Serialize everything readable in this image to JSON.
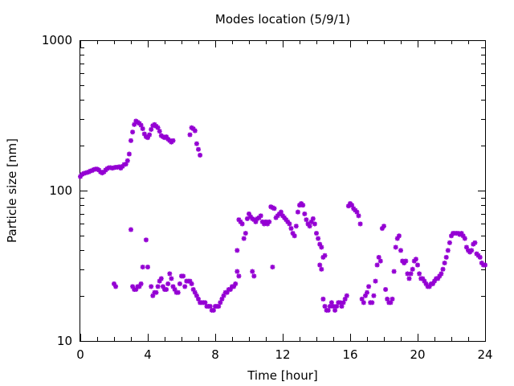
{
  "chart_data": {
    "type": "scatter",
    "title": "Modes location (5/9/1)",
    "xlabel": "Time [hour]",
    "ylabel": "Particle size [nm]",
    "xlim": [
      0,
      24
    ],
    "ylim": [
      10,
      1000
    ],
    "yscale": "log",
    "grid": false,
    "legend": "none",
    "marker_color": "#9400d3",
    "xticks": [
      "0",
      "4",
      "8",
      "12",
      "16",
      "20",
      "24"
    ],
    "yticks": [
      "10",
      "100",
      "1000"
    ],
    "series": [
      {
        "points": [
          [
            0.0,
            124
          ],
          [
            0.1,
            128
          ],
          [
            0.2,
            130
          ],
          [
            0.3,
            131
          ],
          [
            0.4,
            132
          ],
          [
            0.5,
            133
          ],
          [
            0.6,
            135
          ],
          [
            0.7,
            136
          ],
          [
            0.8,
            138
          ],
          [
            0.9,
            139
          ],
          [
            1.0,
            139
          ],
          [
            1.1,
            137
          ],
          [
            1.2,
            133
          ],
          [
            1.3,
            131
          ],
          [
            1.4,
            133
          ],
          [
            1.5,
            137
          ],
          [
            1.6,
            140
          ],
          [
            1.7,
            142
          ],
          [
            1.8,
            142
          ],
          [
            1.9,
            141
          ],
          [
            2.0,
            142
          ],
          [
            2.1,
            143
          ],
          [
            2.2,
            143
          ],
          [
            2.3,
            144
          ],
          [
            2.4,
            141
          ],
          [
            2.5,
            145
          ],
          [
            2.6,
            149
          ],
          [
            2.7,
            150
          ],
          [
            2.8,
            158
          ],
          [
            2.9,
            175
          ],
          [
            3.0,
            215
          ],
          [
            3.1,
            245
          ],
          [
            3.2,
            275
          ],
          [
            3.3,
            290
          ],
          [
            3.4,
            285
          ],
          [
            3.5,
            280
          ],
          [
            3.6,
            272
          ],
          [
            3.7,
            258
          ],
          [
            3.8,
            238
          ],
          [
            3.9,
            228
          ],
          [
            4.0,
            225
          ],
          [
            4.1,
            235
          ],
          [
            4.2,
            255
          ],
          [
            4.3,
            270
          ],
          [
            4.4,
            275
          ],
          [
            4.5,
            268
          ],
          [
            4.6,
            262
          ],
          [
            4.7,
            248
          ],
          [
            4.8,
            232
          ],
          [
            4.9,
            228
          ],
          [
            5.0,
            225
          ],
          [
            5.1,
            228
          ],
          [
            5.2,
            220
          ],
          [
            5.3,
            215
          ],
          [
            5.4,
            210
          ],
          [
            5.5,
            215
          ],
          [
            6.5,
            235
          ],
          [
            6.6,
            262
          ],
          [
            6.7,
            258
          ],
          [
            6.8,
            250
          ],
          [
            6.9,
            205
          ],
          [
            7.0,
            188
          ],
          [
            7.1,
            172
          ],
          [
            2.0,
            24
          ],
          [
            2.1,
            23
          ],
          [
            3.0,
            55
          ],
          [
            3.1,
            23
          ],
          [
            3.2,
            22
          ],
          [
            3.3,
            22
          ],
          [
            3.4,
            23
          ],
          [
            3.5,
            23
          ],
          [
            3.6,
            24
          ],
          [
            3.7,
            31
          ],
          [
            4.0,
            31
          ],
          [
            3.9,
            47
          ],
          [
            4.2,
            23
          ],
          [
            4.3,
            20
          ],
          [
            4.4,
            21
          ],
          [
            4.5,
            21
          ],
          [
            4.6,
            23
          ],
          [
            4.7,
            25
          ],
          [
            4.8,
            26
          ],
          [
            4.9,
            23
          ],
          [
            5.0,
            22
          ],
          [
            5.1,
            22
          ],
          [
            5.2,
            24
          ],
          [
            5.3,
            28
          ],
          [
            5.4,
            26
          ],
          [
            5.5,
            23
          ],
          [
            5.6,
            22
          ],
          [
            5.7,
            21
          ],
          [
            5.8,
            21
          ],
          [
            5.9,
            24
          ],
          [
            6.0,
            27
          ],
          [
            6.1,
            27
          ],
          [
            6.2,
            23
          ],
          [
            6.3,
            25
          ],
          [
            6.4,
            25
          ],
          [
            6.5,
            25
          ],
          [
            6.6,
            24
          ],
          [
            6.7,
            22
          ],
          [
            6.8,
            21
          ],
          [
            6.9,
            20
          ],
          [
            7.0,
            19
          ],
          [
            7.1,
            18
          ],
          [
            7.2,
            18
          ],
          [
            7.3,
            18
          ],
          [
            7.4,
            18
          ],
          [
            7.5,
            17
          ],
          [
            7.6,
            17
          ],
          [
            7.7,
            17
          ],
          [
            7.8,
            16
          ],
          [
            7.9,
            16
          ],
          [
            8.0,
            17
          ],
          [
            8.1,
            17
          ],
          [
            8.2,
            17
          ],
          [
            8.3,
            18
          ],
          [
            8.4,
            19
          ],
          [
            8.5,
            20
          ],
          [
            8.6,
            21
          ],
          [
            8.7,
            21
          ],
          [
            8.8,
            22
          ],
          [
            8.9,
            22
          ],
          [
            9.0,
            23
          ],
          [
            9.1,
            23
          ],
          [
            9.2,
            24
          ],
          [
            9.3,
            40
          ],
          [
            9.4,
            64
          ],
          [
            9.5,
            62
          ],
          [
            9.6,
            60
          ],
          [
            9.7,
            48
          ],
          [
            9.8,
            52
          ],
          [
            9.9,
            65
          ],
          [
            10.0,
            70
          ],
          [
            10.1,
            67
          ],
          [
            10.2,
            65
          ],
          [
            10.3,
            64
          ],
          [
            10.4,
            62
          ],
          [
            10.5,
            65
          ],
          [
            10.6,
            66
          ],
          [
            10.7,
            68
          ],
          [
            10.8,
            62
          ],
          [
            10.9,
            60
          ],
          [
            11.0,
            62
          ],
          [
            11.1,
            60
          ],
          [
            11.2,
            62
          ],
          [
            11.3,
            78
          ],
          [
            11.4,
            77
          ],
          [
            11.5,
            76
          ],
          [
            11.6,
            66
          ],
          [
            11.7,
            68
          ],
          [
            11.8,
            70
          ],
          [
            11.9,
            72
          ],
          [
            12.0,
            68
          ],
          [
            12.1,
            66
          ],
          [
            12.2,
            64
          ],
          [
            12.3,
            62
          ],
          [
            12.4,
            60
          ],
          [
            12.5,
            56
          ],
          [
            12.6,
            52
          ],
          [
            12.7,
            50
          ],
          [
            12.8,
            58
          ],
          [
            12.9,
            72
          ],
          [
            13.0,
            80
          ],
          [
            13.1,
            82
          ],
          [
            13.2,
            80
          ],
          [
            13.3,
            70
          ],
          [
            13.4,
            64
          ],
          [
            13.5,
            60
          ],
          [
            13.6,
            58
          ],
          [
            13.7,
            62
          ],
          [
            13.8,
            65
          ],
          [
            13.9,
            60
          ],
          [
            14.0,
            52
          ],
          [
            14.1,
            48
          ],
          [
            14.2,
            44
          ],
          [
            14.3,
            42
          ],
          [
            14.4,
            36
          ],
          [
            14.5,
            37
          ],
          [
            9.3,
            29
          ],
          [
            9.4,
            27
          ],
          [
            10.2,
            29
          ],
          [
            10.3,
            27
          ],
          [
            11.4,
            31
          ],
          [
            14.2,
            32
          ],
          [
            14.3,
            30
          ],
          [
            14.4,
            19
          ],
          [
            14.5,
            17
          ],
          [
            14.6,
            16
          ],
          [
            14.7,
            16
          ],
          [
            14.8,
            17
          ],
          [
            14.9,
            18
          ],
          [
            15.0,
            17
          ],
          [
            15.1,
            16
          ],
          [
            15.2,
            17
          ],
          [
            15.3,
            18
          ],
          [
            15.4,
            18
          ],
          [
            15.5,
            17
          ],
          [
            15.6,
            18
          ],
          [
            15.7,
            19
          ],
          [
            15.8,
            20
          ],
          [
            15.9,
            79
          ],
          [
            16.0,
            82
          ],
          [
            16.1,
            80
          ],
          [
            16.2,
            76
          ],
          [
            16.3,
            74
          ],
          [
            16.4,
            72
          ],
          [
            16.5,
            68
          ],
          [
            16.6,
            60
          ],
          [
            16.7,
            19
          ],
          [
            16.8,
            18
          ],
          [
            16.9,
            20
          ],
          [
            17.0,
            21
          ],
          [
            17.1,
            23
          ],
          [
            17.2,
            18
          ],
          [
            17.3,
            18
          ],
          [
            17.4,
            20
          ],
          [
            17.5,
            25
          ],
          [
            17.6,
            32
          ],
          [
            17.7,
            36
          ],
          [
            17.8,
            34
          ],
          [
            17.9,
            56
          ],
          [
            18.0,
            58
          ],
          [
            18.1,
            22
          ],
          [
            18.2,
            19
          ],
          [
            18.3,
            18
          ],
          [
            18.4,
            18
          ],
          [
            18.5,
            19
          ],
          [
            18.6,
            29
          ],
          [
            18.7,
            42
          ],
          [
            18.8,
            48
          ],
          [
            18.9,
            50
          ],
          [
            19.0,
            40
          ],
          [
            19.1,
            34
          ],
          [
            19.2,
            33
          ],
          [
            19.3,
            34
          ],
          [
            19.4,
            28
          ],
          [
            19.5,
            26
          ],
          [
            19.6,
            28
          ],
          [
            19.7,
            30
          ],
          [
            19.8,
            34
          ],
          [
            19.9,
            35
          ],
          [
            20.0,
            32
          ],
          [
            20.1,
            28
          ],
          [
            20.2,
            26
          ],
          [
            20.3,
            26
          ],
          [
            20.4,
            25
          ],
          [
            20.5,
            24
          ],
          [
            20.6,
            23
          ],
          [
            20.7,
            23
          ],
          [
            20.8,
            24
          ],
          [
            20.9,
            24
          ],
          [
            21.0,
            25
          ],
          [
            21.1,
            26
          ],
          [
            21.2,
            26
          ],
          [
            21.3,
            27
          ],
          [
            21.4,
            28
          ],
          [
            21.5,
            30
          ],
          [
            21.6,
            33
          ],
          [
            21.7,
            36
          ],
          [
            21.8,
            40
          ],
          [
            21.9,
            45
          ],
          [
            22.0,
            50
          ],
          [
            22.1,
            52
          ],
          [
            22.2,
            52
          ],
          [
            22.3,
            52
          ],
          [
            22.4,
            52
          ],
          [
            22.5,
            51
          ],
          [
            22.6,
            52
          ],
          [
            22.7,
            50
          ],
          [
            22.8,
            48
          ],
          [
            22.9,
            42
          ],
          [
            23.0,
            40
          ],
          [
            23.1,
            39
          ],
          [
            23.2,
            40
          ],
          [
            23.3,
            44
          ],
          [
            23.4,
            45
          ],
          [
            23.5,
            38
          ],
          [
            23.6,
            37
          ],
          [
            23.7,
            36
          ],
          [
            23.8,
            33
          ],
          [
            23.9,
            32
          ],
          [
            24.0,
            32
          ]
        ]
      }
    ]
  }
}
